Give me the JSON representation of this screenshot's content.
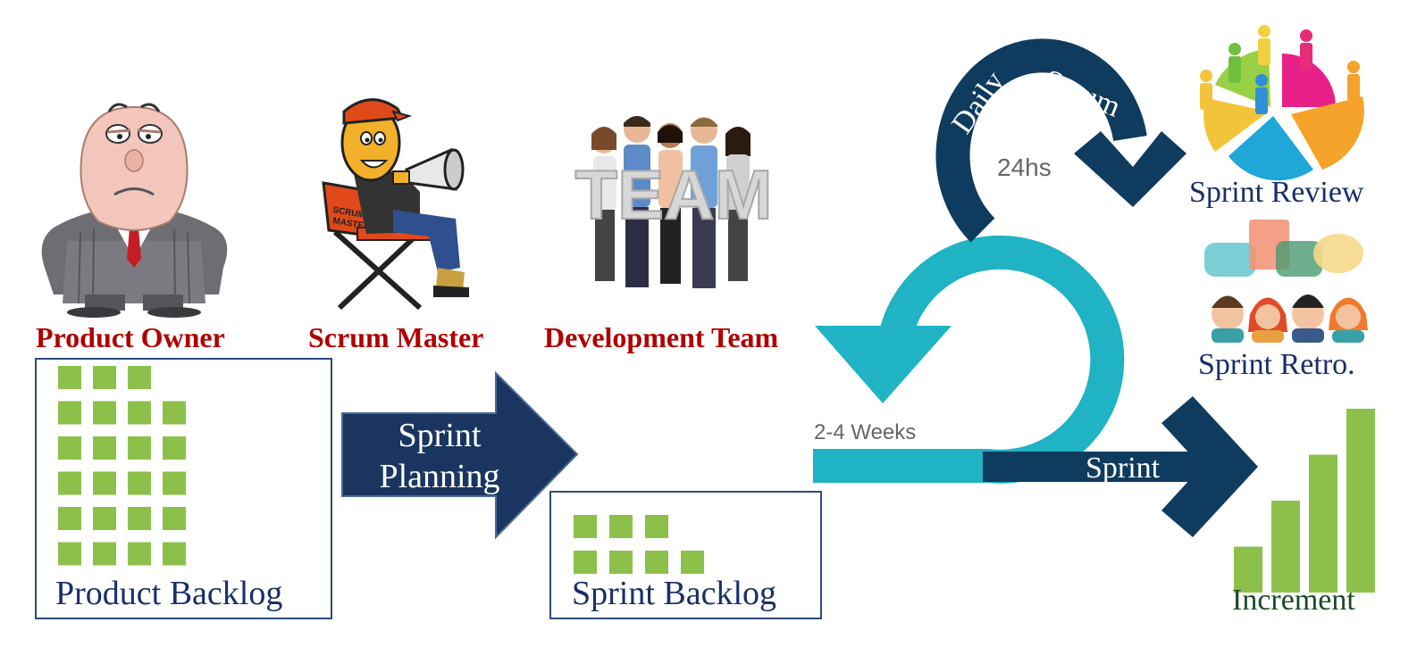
{
  "roles": {
    "product_owner": "Product Owner",
    "scrum_master": "Scrum Master",
    "development_team": "Development Team"
  },
  "team_sign_text": "TEAM",
  "scrum_master_chair_text": "SCRUM MASTER",
  "product_backlog": {
    "label": "Product Backlog",
    "row_counts": [
      3,
      4,
      4,
      4,
      4,
      4
    ]
  },
  "sprint_planning": {
    "line1": "Sprint",
    "line2": "Planning"
  },
  "sprint_backlog": {
    "label": "Sprint Backlog",
    "row_counts": [
      3,
      4
    ]
  },
  "daily_scrum": {
    "word1": "Daily",
    "word2": "Scrum",
    "duration": "24hs"
  },
  "sprint_cycle": {
    "duration": "2-4 Weeks",
    "label": "Sprint"
  },
  "ceremonies": {
    "review": "Sprint Review",
    "retro": "Sprint Retro."
  },
  "increment": {
    "label": "Increment",
    "bar_values": [
      1,
      2,
      3,
      4
    ]
  },
  "colors": {
    "role_red": "#b00000",
    "navy": "#1a2e55",
    "dark_blue": "#0f3b5f",
    "teal": "#1fb3c4",
    "green": "#8dc04a",
    "box_border": "#2c4a7a",
    "gray_text": "#666666"
  }
}
